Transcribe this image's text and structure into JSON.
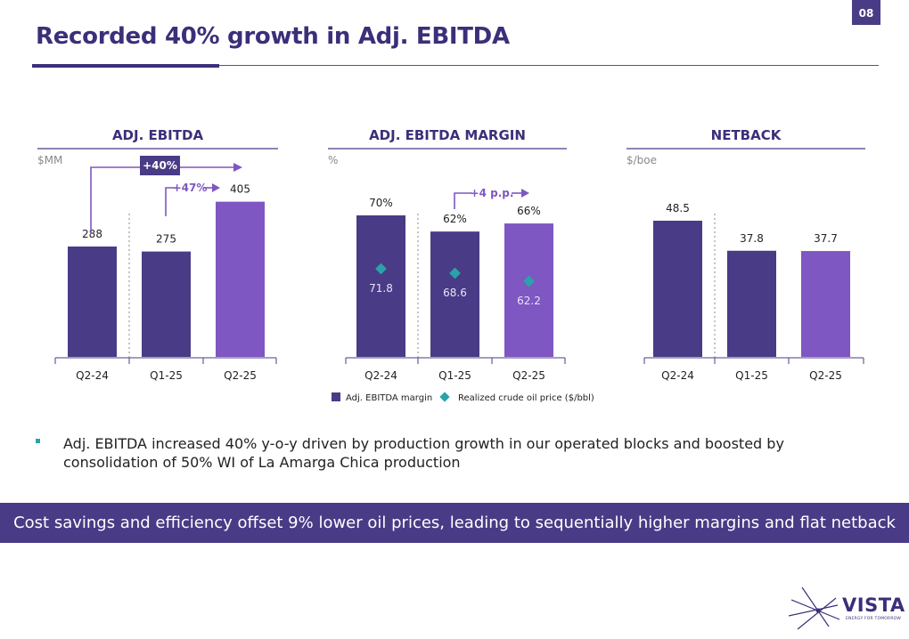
{
  "page_number": "08",
  "title": "Recorded 40% growth in Adj. EBITDA",
  "chart_data": [
    {
      "type": "bar",
      "title": "ADJ. EBITDA",
      "unit": "$MM",
      "categories": [
        "Q2-24",
        "Q1-25",
        "Q2-25"
      ],
      "values": [
        288,
        275,
        405
      ],
      "labels": [
        "288",
        "275",
        "405"
      ],
      "ylim": [
        0,
        450
      ],
      "annotations": [
        "+40%",
        "+47%"
      ]
    },
    {
      "type": "bar",
      "title": "ADJ. EBITDA MARGIN",
      "unit": "%",
      "categories": [
        "Q2-24",
        "Q1-25",
        "Q2-25"
      ],
      "series": [
        {
          "name": "Adj. EBITDA margin",
          "values": [
            70,
            62,
            66
          ],
          "labels": [
            "70%",
            "62%",
            "66%"
          ]
        },
        {
          "name": "Realized crude oil price ($/bbl)",
          "values": [
            71.8,
            68.6,
            62.2
          ],
          "labels": [
            "71.8",
            "68.6",
            "62.2"
          ]
        }
      ],
      "ylim": [
        0,
        80
      ],
      "annotations": [
        "+4 p.p."
      ]
    },
    {
      "type": "bar",
      "title": "NETBACK",
      "unit": "$/boe",
      "categories": [
        "Q2-24",
        "Q1-25",
        "Q2-25"
      ],
      "values": [
        48.5,
        37.8,
        37.7
      ],
      "labels": [
        "48.5",
        "37.8",
        "37.7"
      ],
      "ylim": [
        0,
        55
      ]
    }
  ],
  "bullet": "Adj. EBITDA increased 40% y-o-y driven by production growth in our operated blocks and boosted by consolidation of 50% WI of La Amarga Chica production",
  "banner": "Cost savings and efficiency offset 9% lower oil prices, leading to sequentially higher margins and flat netback",
  "logo": {
    "name": "VISTA",
    "tagline": "ENERGY FOR TOMORROW"
  },
  "colors": {
    "dark_purple": "#4a3b86",
    "light_purple": "#7e57c2",
    "teal": "#2aa3a8",
    "title": "#3b2f7a"
  }
}
